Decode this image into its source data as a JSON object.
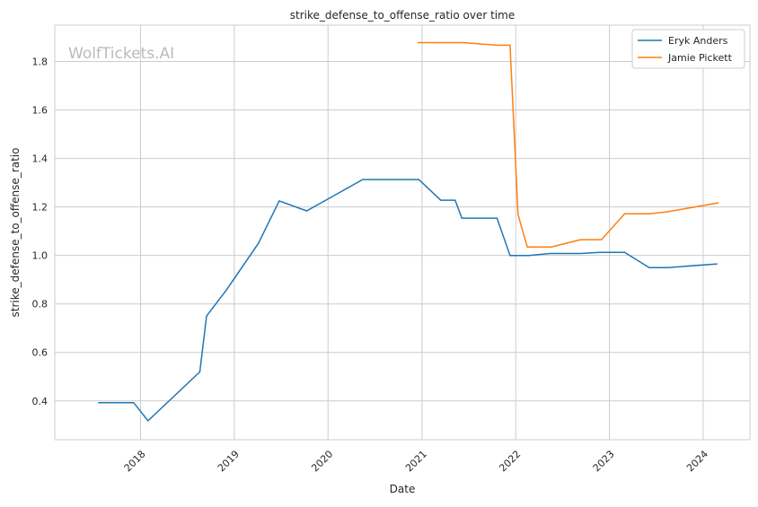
{
  "chart_data": {
    "type": "line",
    "title": "strike_defense_to_offense_ratio over time",
    "xlabel": "Date",
    "ylabel": "strike_defense_to_offense_ratio",
    "watermark": "WolfTickets.AI",
    "xlim": [
      "2017-02-01",
      "2024-07-01"
    ],
    "ylim": [
      0.24,
      1.95
    ],
    "x_ticks": [
      "2018",
      "2019",
      "2020",
      "2021",
      "2022",
      "2023",
      "2024"
    ],
    "y_ticks": [
      0.4,
      0.6,
      0.8,
      1.0,
      1.2,
      1.4,
      1.6,
      1.8
    ],
    "grid": true,
    "legend_placement": "top-right",
    "series": [
      {
        "name": "Eryk Anders",
        "color": "#1f77b4",
        "x": [
          "2017-07-20",
          "2017-12-05",
          "2018-01-30",
          "2018-08-20",
          "2018-09-15",
          "2018-12-01",
          "2019-04-05",
          "2019-06-25",
          "2019-10-10",
          "2020-05-15",
          "2020-12-20",
          "2021-03-15",
          "2021-05-10",
          "2021-06-05",
          "2021-10-20",
          "2021-12-10",
          "2022-02-20",
          "2022-05-15",
          "2022-09-10",
          "2022-11-25",
          "2023-03-01",
          "2023-06-05",
          "2023-08-15",
          "2024-02-25"
        ],
        "values": [
          0.393,
          0.393,
          0.318,
          0.52,
          0.75,
          0.857,
          1.05,
          1.225,
          1.184,
          1.313,
          1.313,
          1.228,
          1.228,
          1.154,
          1.154,
          1.0,
          1.0,
          1.008,
          1.008,
          1.013,
          1.013,
          0.95,
          0.95,
          0.965
        ]
      },
      {
        "name": "Jamie Pickett",
        "color": "#ff7f0e",
        "x": [
          "2020-12-15",
          "2021-06-10",
          "2021-10-20",
          "2021-12-10",
          "2022-01-10",
          "2022-02-15",
          "2022-05-20",
          "2022-09-10",
          "2022-12-01",
          "2023-03-01",
          "2023-06-05",
          "2023-08-15",
          "2024-03-01"
        ],
        "values": [
          1.878,
          1.878,
          1.867,
          1.867,
          1.169,
          1.035,
          1.035,
          1.065,
          1.065,
          1.172,
          1.172,
          1.18,
          1.217
        ]
      }
    ]
  }
}
